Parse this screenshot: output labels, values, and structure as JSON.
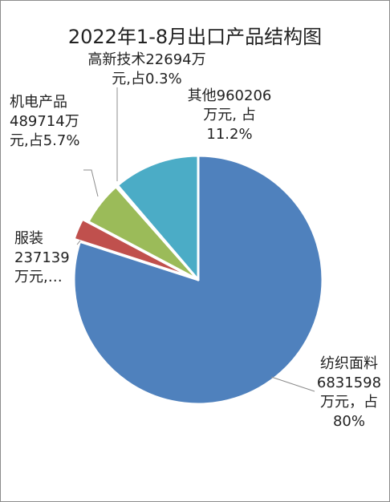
{
  "chart_data": {
    "type": "pie",
    "title": "2022年1-8月出口产品结构图",
    "slices": [
      {
        "name": "纺织面料",
        "value": 6831598,
        "percent": 80,
        "color": "#4f81bd",
        "label_lines": [
          "纺织面料",
          "6831598",
          "万元，占",
          "80%"
        ]
      },
      {
        "name": "服装",
        "value": 237139,
        "percent": 2.8,
        "color": "#c0504d",
        "label_lines": [
          "服装",
          "237139",
          "万元,…"
        ]
      },
      {
        "name": "机电产品",
        "value": 489714,
        "percent": 5.7,
        "color": "#9bbb59",
        "label_lines": [
          "机电产品",
          "489714万",
          "元,占5.7%"
        ]
      },
      {
        "name": "高新技术",
        "value": 22694,
        "percent": 0.3,
        "color": "#8064a2",
        "label_lines": [
          "高新技术22694万",
          "元,占0.3%"
        ]
      },
      {
        "name": "其他",
        "value": 960206,
        "percent": 11.2,
        "color": "#4bacc6",
        "label_lines": [
          "其他960206",
          "万元, 占",
          "11.2%"
        ]
      }
    ]
  }
}
